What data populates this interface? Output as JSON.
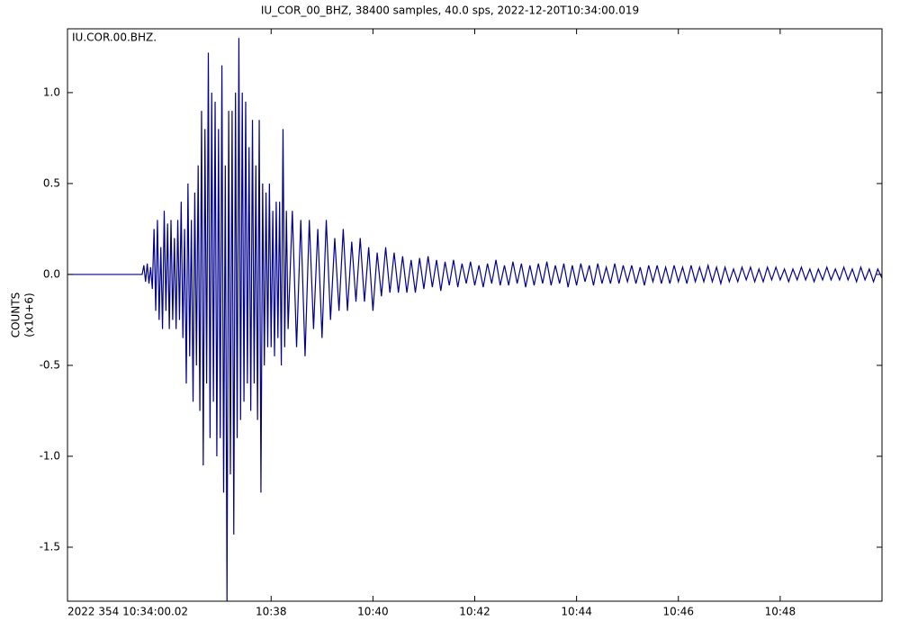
{
  "chart_data": {
    "type": "line",
    "title": "IU_COR_00_BHZ, 38400 samples, 40.0 sps, 2022-12-20T10:34:00.019",
    "annotation": "IU.COR.00.BHZ.",
    "ylabel_lines": [
      "COUNTS",
      "(x10+6)"
    ],
    "color": "#00008b",
    "xlim": [
      0,
      960
    ],
    "ylim": [
      -1.797,
      1.351
    ],
    "xticks": [
      {
        "value": 0,
        "label": "2022 354 10:34:00.02"
      },
      {
        "value": 240,
        "label": "10:38"
      },
      {
        "value": 360,
        "label": "10:40"
      },
      {
        "value": 480,
        "label": "10:42"
      },
      {
        "value": 600,
        "label": "10:44"
      },
      {
        "value": 720,
        "label": "10:46"
      },
      {
        "value": 840,
        "label": "10:48"
      }
    ],
    "yticks": [
      {
        "value": -1.5,
        "label": "-1.5"
      },
      {
        "value": -1,
        "label": "-1.0"
      },
      -0.5,
      {
        "value": 0,
        "label": "0.0"
      },
      0.5,
      {
        "value": 1,
        "label": "1.0"
      }
    ],
    "x": [
      0,
      40,
      86,
      88,
      90,
      92,
      94,
      96,
      98,
      100,
      102,
      104,
      106,
      108,
      110,
      112,
      114,
      116,
      118,
      120,
      122,
      124,
      126,
      128,
      130,
      132,
      134,
      136,
      138,
      140,
      142,
      144,
      146,
      148,
      150,
      152,
      154,
      156,
      158,
      160,
      162,
      164,
      166,
      168,
      170,
      172,
      174,
      176,
      178,
      180,
      182,
      184,
      186,
      188,
      190,
      192,
      194,
      196,
      198,
      200,
      202,
      204,
      206,
      208,
      210,
      212,
      214,
      216,
      218,
      220,
      222,
      224,
      226,
      228,
      230,
      232,
      234,
      236,
      238,
      240,
      242,
      244,
      246,
      248,
      250,
      252,
      254,
      256,
      258,
      260,
      265,
      270,
      275,
      280,
      285,
      290,
      295,
      300,
      305,
      310,
      315,
      320,
      325,
      330,
      335,
      340,
      345,
      350,
      355,
      360,
      365,
      370,
      375,
      380,
      385,
      390,
      395,
      400,
      405,
      410,
      415,
      420,
      425,
      430,
      435,
      440,
      445,
      450,
      455,
      460,
      465,
      470,
      475,
      480,
      485,
      490,
      495,
      500,
      505,
      510,
      515,
      520,
      525,
      530,
      535,
      540,
      545,
      550,
      555,
      560,
      565,
      570,
      575,
      580,
      585,
      590,
      595,
      600,
      605,
      610,
      615,
      620,
      625,
      630,
      635,
      640,
      645,
      650,
      655,
      660,
      665,
      670,
      675,
      680,
      685,
      690,
      695,
      700,
      705,
      710,
      715,
      720,
      725,
      730,
      735,
      740,
      745,
      750,
      755,
      760,
      765,
      770,
      775,
      780,
      785,
      790,
      795,
      800,
      805,
      810,
      815,
      820,
      825,
      830,
      835,
      840,
      845,
      850,
      855,
      860,
      865,
      870,
      875,
      880,
      885,
      890,
      895,
      900,
      905,
      910,
      915,
      920,
      925,
      930,
      935,
      940,
      945,
      950,
      955,
      960
    ],
    "values": [
      0,
      0,
      0,
      0,
      0.05,
      -0.04,
      0.06,
      -0.05,
      0.04,
      -0.08,
      0.25,
      -0.2,
      0.3,
      -0.25,
      0.15,
      -0.3,
      0.35,
      -0.2,
      0.28,
      -0.3,
      0.3,
      -0.25,
      0.2,
      -0.3,
      0.3,
      -0.25,
      0.4,
      -0.35,
      0.25,
      -0.6,
      0.5,
      -0.45,
      0.3,
      -0.7,
      0.45,
      -0.5,
      0.6,
      -0.75,
      0.9,
      -1.05,
      0.8,
      -0.6,
      1.22,
      -0.9,
      1.0,
      -0.7,
      0.95,
      -1.0,
      0.8,
      -0.9,
      1.15,
      -1.2,
      0.6,
      -1.8,
      0.9,
      -1.1,
      0.9,
      -1.43,
      1.0,
      -0.9,
      1.3,
      -0.8,
      1.0,
      -0.7,
      0.95,
      -0.6,
      0.7,
      -0.75,
      0.85,
      -0.6,
      0.6,
      -0.8,
      0.85,
      -1.2,
      0.5,
      -0.5,
      0.45,
      -0.4,
      0.5,
      -0.4,
      0.35,
      -0.45,
      0.4,
      -0.35,
      0.4,
      -0.5,
      0.8,
      -0.4,
      0.35,
      -0.3,
      0.35,
      -0.4,
      0.3,
      -0.45,
      0.3,
      -0.3,
      0.25,
      -0.35,
      0.3,
      -0.25,
      0.2,
      -0.2,
      0.25,
      -0.2,
      0.18,
      -0.15,
      0.2,
      -0.15,
      0.15,
      -0.2,
      0.12,
      -0.12,
      0.15,
      -0.1,
      0.12,
      -0.1,
      0.1,
      -0.1,
      0.08,
      -0.1,
      0.09,
      -0.08,
      0.1,
      -0.07,
      0.08,
      -0.09,
      0.07,
      -0.06,
      0.08,
      -0.07,
      0.06,
      -0.05,
      0.07,
      -0.06,
      0.05,
      -0.07,
      0.06,
      -0.05,
      0.08,
      -0.06,
      0.05,
      -0.06,
      0.07,
      -0.05,
      0.06,
      -0.07,
      0.05,
      -0.06,
      0.06,
      -0.05,
      0.07,
      -0.06,
      0.05,
      -0.05,
      0.06,
      -0.07,
      0.05,
      -0.06,
      0.06,
      -0.04,
      0.05,
      -0.06,
      0.06,
      -0.05,
      0.04,
      -0.05,
      0.06,
      -0.05,
      0.05,
      -0.04,
      0.05,
      -0.05,
      0.04,
      -0.06,
      0.05,
      -0.04,
      0.05,
      -0.05,
      0.04,
      -0.05,
      0.05,
      -0.04,
      0.04,
      -0.05,
      0.05,
      -0.04,
      0.04,
      -0.04,
      0.05,
      -0.04,
      0.04,
      -0.05,
      0.04,
      -0.04,
      0.03,
      -0.04,
      0.04,
      -0.03,
      0.04,
      -0.04,
      0.03,
      -0.04,
      0.04,
      -0.03,
      0.04,
      -0.03,
      0.03,
      -0.04,
      0.03,
      -0.03,
      0.04,
      -0.03,
      0.03,
      -0.04,
      0.03,
      -0.03,
      0.04,
      -0.03,
      0.03,
      -0.03,
      0.04,
      -0.03,
      0.03,
      -0.04,
      0.04,
      -0.03,
      0.03,
      -0.04,
      0.03,
      -0.02
    ]
  }
}
